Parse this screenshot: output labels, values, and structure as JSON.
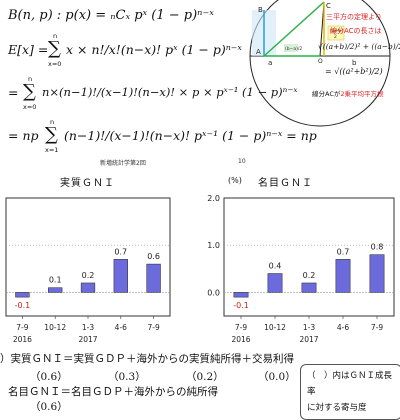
{
  "formulas": {
    "line1": "B(n, p) : p(x) = ₙCₓ pˣ (1 − p)ⁿ⁻ˣ",
    "line2_lhs": "E[x] = ",
    "line2_sum_top": "n",
    "line2_sum_bottom": "x=0",
    "line2_body": "x × n!/x!(n−x)! pˣ (1 − p)ⁿ⁻ˣ",
    "line3_lhs": "= ",
    "line3_sum_top": "n",
    "line3_sum_bottom": "x=0",
    "line3_body": "n×(n−1)!/(x−1)!(n−x)! × p × pˣ⁻¹ (1 − p)ⁿ⁻ˣ",
    "line4_lhs": "= np",
    "line4_sum_top": "n",
    "line4_sum_bottom": "x=1",
    "line4_body": "(n−1)!/(x−1)!(n−x)! pˣ⁻¹ (1 − p)ⁿ⁻ˣ = np"
  },
  "page_header": {
    "left": "新増統計学第2回",
    "right": "10"
  },
  "circle_diagram": {
    "labels": {
      "A": "A",
      "B": "B",
      "C": "C",
      "a": "a",
      "b": "b",
      "O": "O"
    },
    "red_text_1": "三平方の定理より",
    "red_text_2": "線分ACの長さは",
    "formula_1": "√((a+b)/2)² + ((a−b)/2)²",
    "formula_2": "= √((a²+b²)/2)",
    "bottom_text_a": "線分ACが",
    "bottom_text_b": "2乗平均平方根"
  },
  "colors": {
    "bar": "#6b6bdc",
    "negative_label": "#d02020",
    "red_text": "#e02020",
    "grid": "#999999"
  },
  "chart_data": [
    {
      "type": "bar",
      "title": "実質ＧＮＩ",
      "categories": [
        "7-9",
        "10-12",
        "1-3",
        "4-6",
        "7-9"
      ],
      "year_labels": [
        "2016",
        "2017"
      ],
      "values": [
        -0.1,
        0.1,
        0.2,
        0.7,
        0.6
      ],
      "value_labels": [
        "-0.1",
        "0.1",
        "0.2",
        "0.7",
        "0.6"
      ],
      "ylim": [
        -0.5,
        2.0
      ]
    },
    {
      "type": "bar",
      "title": "名目ＧＮＩ",
      "unit_label": "(%)",
      "categories": [
        "7-9",
        "10-12",
        "1-3",
        "4-6",
        "7-9"
      ],
      "year_labels": [
        "2016",
        "2017"
      ],
      "values": [
        -0.1,
        0.4,
        0.2,
        0.7,
        0.8
      ],
      "value_labels": [
        "-0.1",
        "0.4",
        "0.2",
        "0.7",
        "0.8"
      ],
      "ylim": [
        -0.5,
        2.0
      ],
      "yticks": [
        "2.0",
        "1.0",
        "0.0"
      ]
    }
  ],
  "footer": {
    "line1": "）実質ＧＮＩ＝実質ＧＤＰ＋海外からの実質純所得＋交易利得",
    "contrib": [
      "（0.6）",
      "（0.3）",
      "（0.2）",
      "（0.0）"
    ],
    "line3": "名目ＧＮＩ＝名目ＧＤＰ＋海外からの純所得",
    "contrib2": [
      "（0.6）"
    ],
    "note_1": "（　）内はＧＮＩ成長率",
    "note_2": "に対する寄与度"
  }
}
